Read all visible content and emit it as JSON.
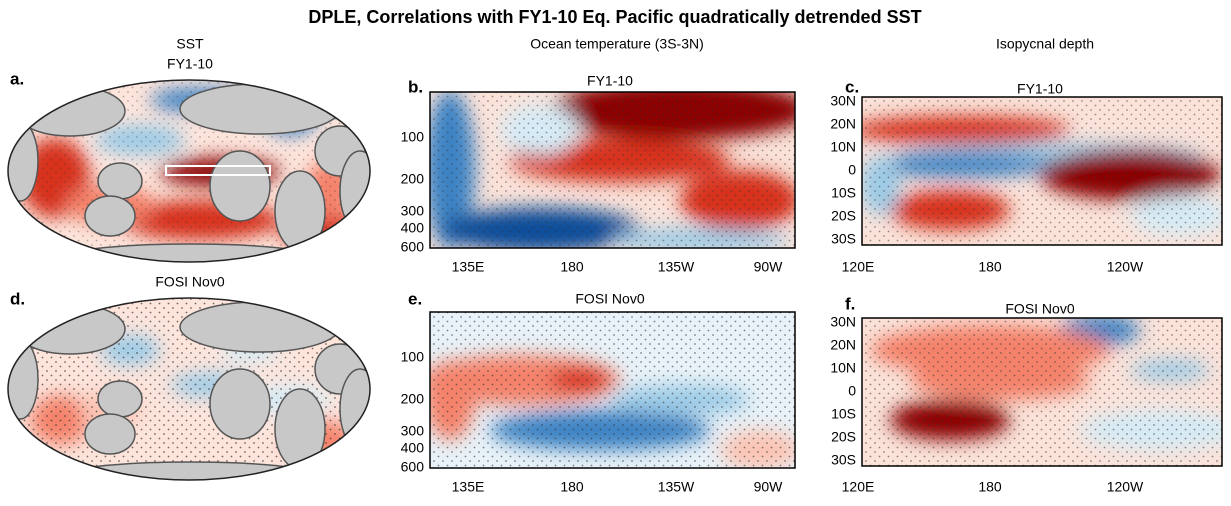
{
  "title": "DPLE, Correlations with FY1-10 Eq. Pacific quadratically detrended SST",
  "columns": [
    "SST",
    "Ocean temperature (3S-3N)",
    "Isopycnal depth"
  ],
  "panels": [
    {
      "label": "a.",
      "subtitle": "FY1-10"
    },
    {
      "label": "b.",
      "subtitle": "FY1-10"
    },
    {
      "label": "c.",
      "subtitle": "FY1-10"
    },
    {
      "label": "d.",
      "subtitle": "FOSI Nov0"
    },
    {
      "label": "e.",
      "subtitle": "FOSI Nov0"
    },
    {
      "label": "f.",
      "subtitle": "FOSI Nov0"
    }
  ],
  "depth_ticks": [
    "100",
    "200",
    "300",
    "400",
    "600"
  ],
  "depth_lon_ticks": [
    "135E",
    "180",
    "135W",
    "90W"
  ],
  "lat_ticks": [
    "30N",
    "20N",
    "10N",
    "0",
    "10S",
    "20S",
    "30S"
  ],
  "lat_lon_ticks": [
    "120E",
    "180",
    "120W"
  ]
}
